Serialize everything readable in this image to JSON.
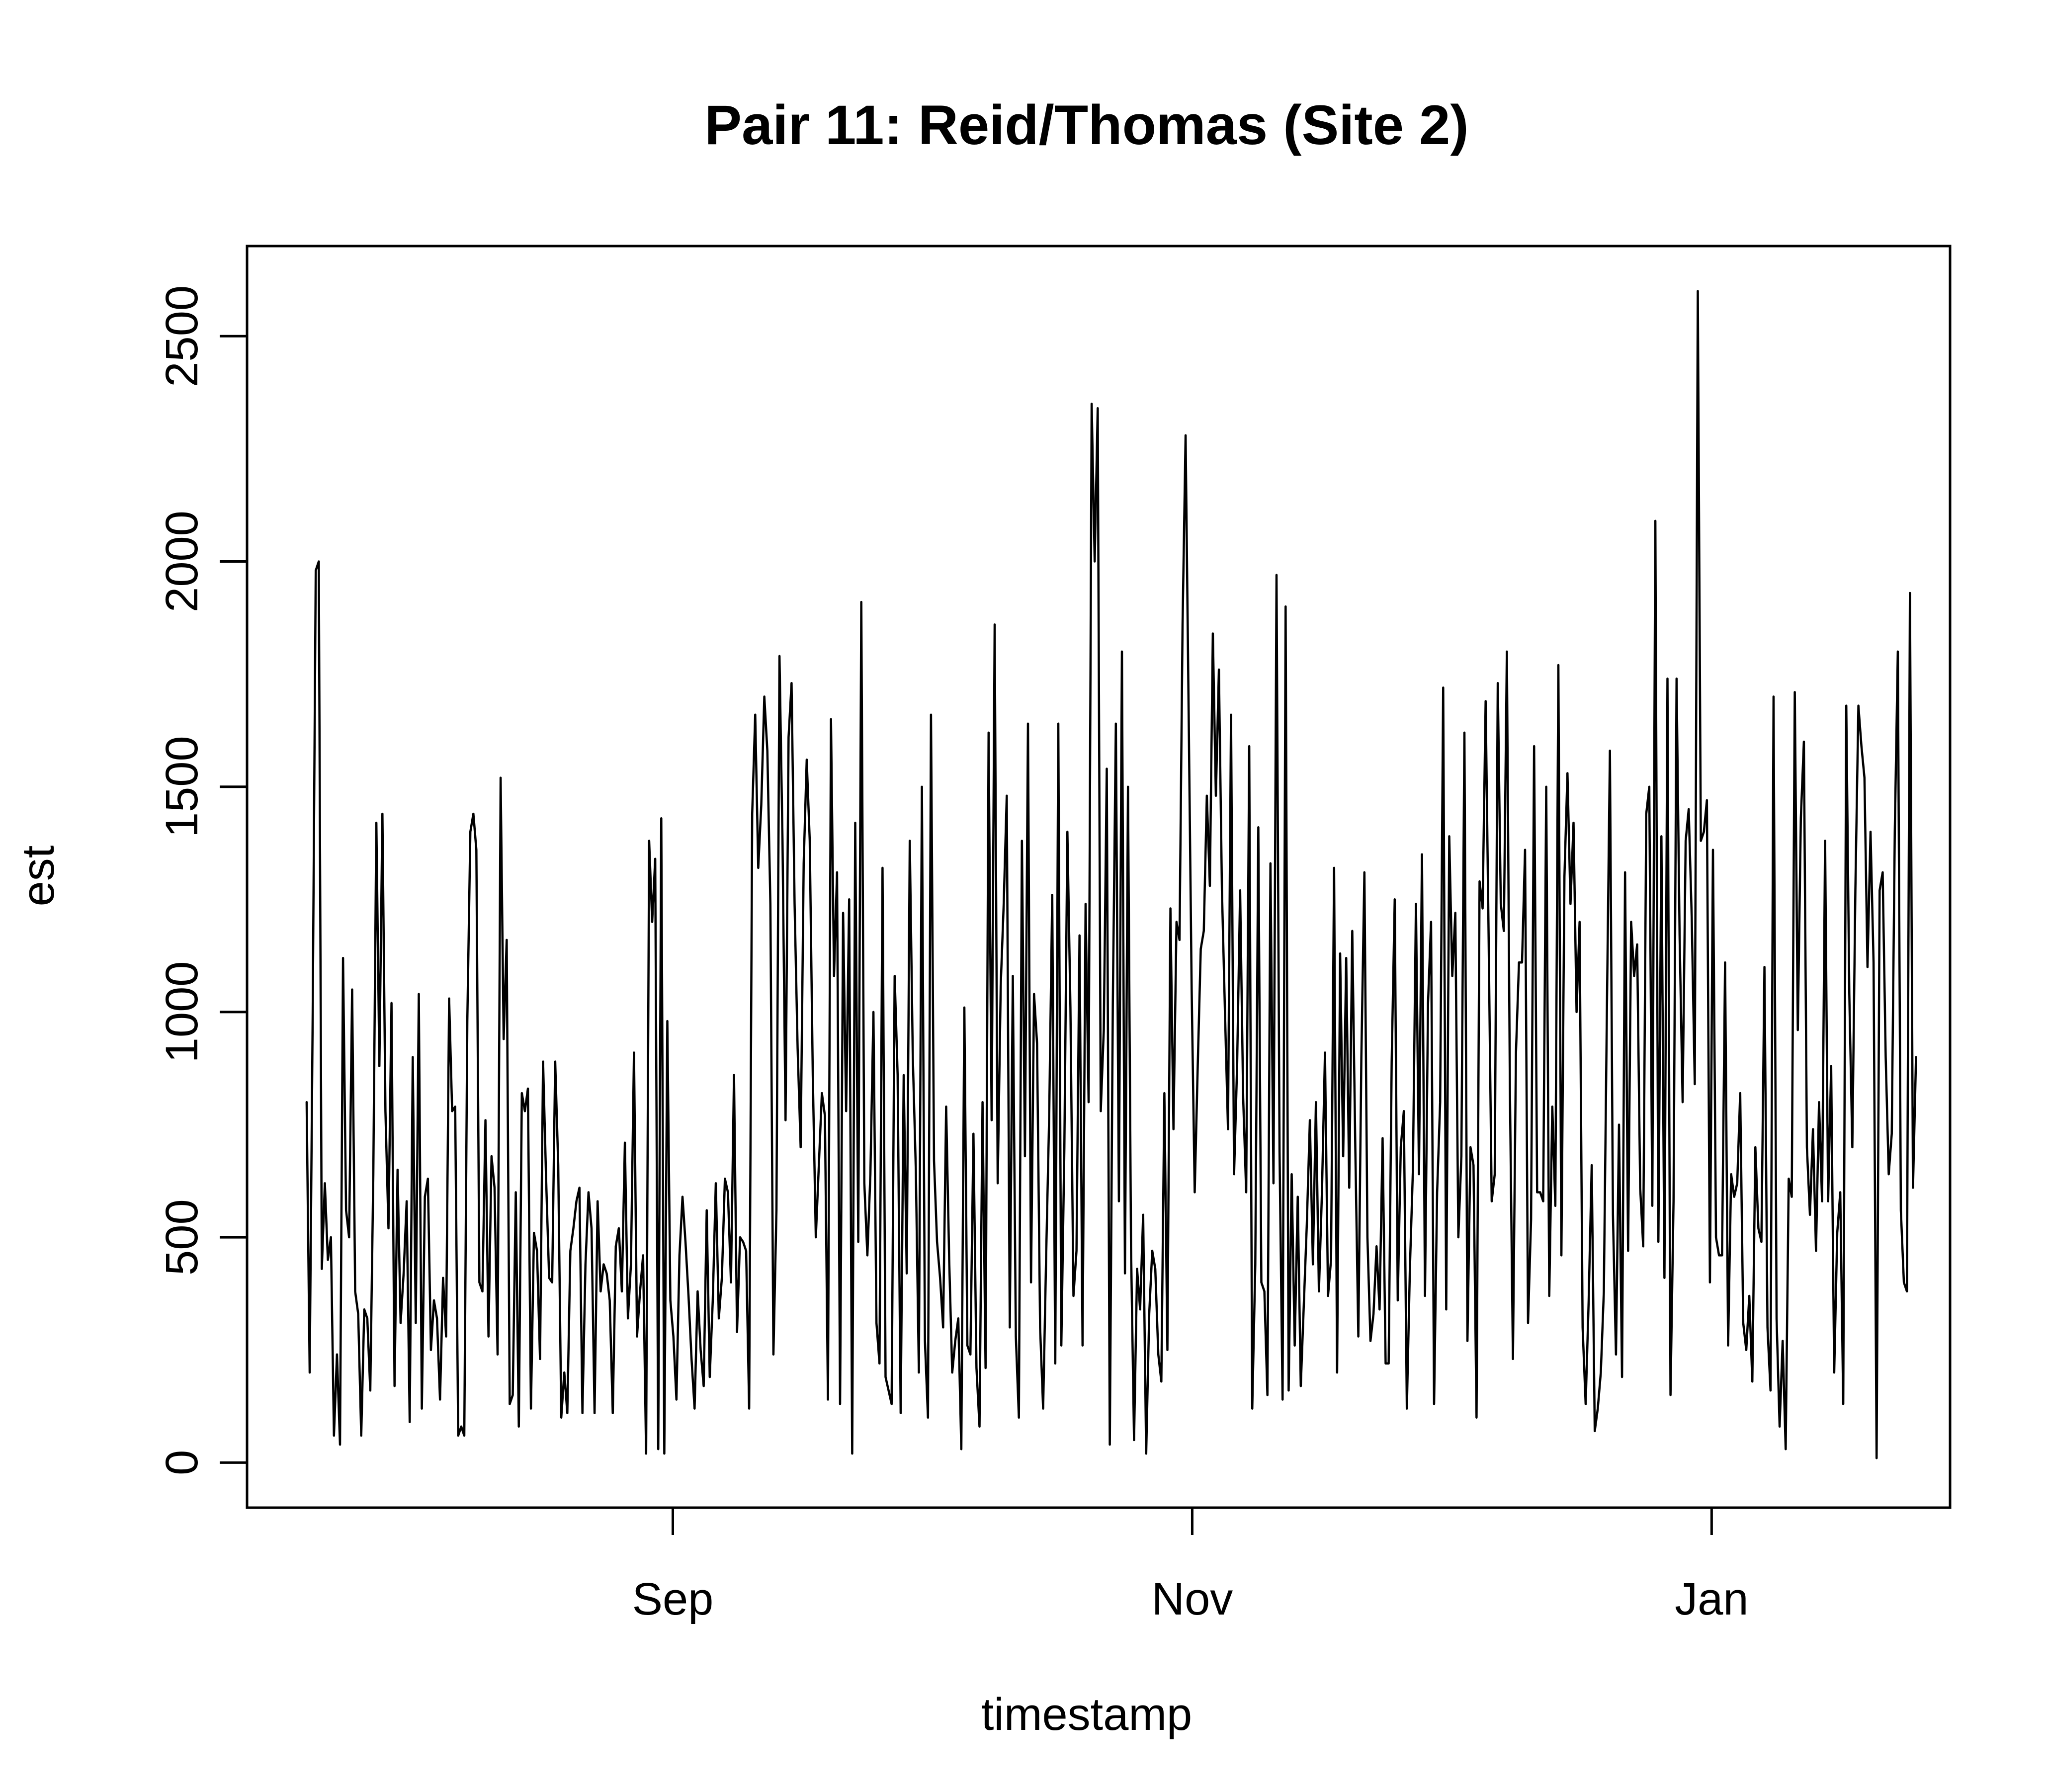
{
  "chart_data": {
    "type": "line",
    "title": "Pair 11: Reid/Thomas (Site 2)",
    "xlabel": "timestamp",
    "ylabel": "est",
    "x_range": [
      "2023-07-13",
      "2024-01-29"
    ],
    "ylim": [
      -100,
      2700
    ],
    "x_ticks": [
      {
        "date": "2023-09-01",
        "label": "Sep"
      },
      {
        "date": "2023-11-01",
        "label": "Nov"
      },
      {
        "date": "2024-01-01",
        "label": "Jan"
      }
    ],
    "y_ticks": [
      0,
      500,
      1000,
      1500,
      2000,
      2500
    ],
    "grid": false,
    "legend": "none",
    "line_color": "#000000",
    "series": [
      {
        "x_start": "2023-07-20",
        "x_end": "2024-01-25",
        "values": [
          800,
          200,
          1000,
          1980,
          2000,
          430,
          620,
          450,
          500,
          60,
          240,
          40,
          1120,
          560,
          500,
          1050,
          380,
          330,
          60,
          340,
          320,
          160,
          640,
          1420,
          880,
          1440,
          780,
          520,
          1020,
          170,
          650,
          310,
          420,
          580,
          90,
          900,
          310,
          1040,
          120,
          590,
          630,
          250,
          360,
          320,
          140,
          410,
          280,
          1030,
          780,
          790,
          60,
          80,
          60,
          980,
          1400,
          1440,
          1360,
          400,
          380,
          760,
          280,
          680,
          610,
          240,
          1520,
          940,
          1160,
          130,
          150,
          600,
          80,
          820,
          780,
          830,
          120,
          510,
          470,
          230,
          890,
          630,
          410,
          400,
          890,
          660,
          100,
          200,
          110,
          470,
          520,
          580,
          610,
          110,
          440,
          600,
          520,
          110,
          580,
          380,
          440,
          420,
          360,
          110,
          480,
          520,
          380,
          710,
          320,
          440,
          910,
          280,
          380,
          460,
          20,
          1380,
          1200,
          1340,
          30,
          1430,
          20,
          980,
          360,
          280,
          140,
          460,
          590,
          490,
          370,
          230,
          120,
          380,
          250,
          170,
          560,
          190,
          360,
          620,
          320,
          410,
          630,
          600,
          400,
          860,
          290,
          500,
          490,
          470,
          120,
          1440,
          1660,
          1320,
          1460,
          1700,
          1580,
          1240,
          240,
          560,
          1790,
          1380,
          760,
          1610,
          1730,
          1240,
          920,
          700,
          1330,
          1560,
          1380,
          860,
          500,
          660,
          820,
          770,
          140,
          1650,
          1080,
          1310,
          130,
          1220,
          780,
          1250,
          20,
          1420,
          490,
          1910,
          620,
          460,
          640,
          1000,
          310,
          220,
          1320,
          190,
          160,
          130,
          1080,
          860,
          110,
          860,
          420,
          1380,
          900,
          650,
          200,
          1500,
          270,
          100,
          1660,
          670,
          490,
          410,
          300,
          790,
          450,
          200,
          270,
          320,
          30,
          1010,
          260,
          240,
          730,
          210,
          80,
          800,
          210,
          1620,
          760,
          1860,
          620,
          1060,
          1240,
          1480,
          300,
          1080,
          280,
          100,
          1380,
          680,
          1640,
          400,
          1040,
          930,
          300,
          120,
          460,
          770,
          1260,
          220,
          1640,
          260,
          700,
          1400,
          1010,
          370,
          470,
          1170,
          260,
          1240,
          800,
          2350,
          2000,
          2340,
          780,
          960,
          1540,
          40,
          1020,
          1640,
          580,
          1800,
          420,
          1500,
          480,
          50,
          430,
          340,
          550,
          20,
          330,
          470,
          430,
          240,
          180,
          820,
          250,
          1230,
          740,
          1200,
          1160,
          1860,
          2280,
          1670,
          1050,
          600,
          880,
          1140,
          1180,
          1480,
          1280,
          1840,
          1480,
          1760,
          1270,
          1000,
          740,
          1660,
          640,
          880,
          1270,
          810,
          600,
          1590,
          120,
          440,
          1410,
          400,
          380,
          150,
          1330,
          620,
          1970,
          690,
          140,
          1900,
          160,
          640,
          260,
          590,
          170,
          350,
          530,
          760,
          440,
          800,
          380,
          600,
          910,
          370,
          450,
          1320,
          200,
          1130,
          680,
          1120,
          610,
          1180,
          700,
          280,
          900,
          1310,
          500,
          270,
          330,
          480,
          340,
          720,
          220,
          220,
          890,
          1250,
          360,
          700,
          780,
          120,
          430,
          650,
          1240,
          640,
          1350,
          370,
          1020,
          1200,
          130,
          600,
          800,
          1720,
          340,
          1390,
          1080,
          1220,
          500,
          680,
          1620,
          270,
          700,
          660,
          100,
          1290,
          1230,
          1690,
          1160,
          580,
          640,
          1730,
          1240,
          1180,
          1800,
          830,
          230,
          910,
          1110,
          1110,
          1360,
          310,
          540,
          1590,
          600,
          600,
          580,
          1500,
          370,
          790,
          570,
          1770,
          460,
          1300,
          1530,
          1240,
          1420,
          1000,
          1200,
          300,
          130,
          360,
          660,
          70,
          120,
          200,
          380,
          1000,
          1580,
          550,
          240,
          750,
          190,
          1310,
          470,
          1200,
          1080,
          1150,
          610,
          480,
          1440,
          1500,
          570,
          2090,
          490,
          1390,
          410,
          1740,
          150,
          580,
          1740,
          1170,
          800,
          1380,
          1450,
          1210,
          840,
          2600,
          1380,
          1400,
          1470,
          400,
          1360,
          500,
          460,
          460,
          1110,
          260,
          640,
          590,
          620,
          820,
          310,
          250,
          370,
          180,
          700,
          520,
          490,
          1100,
          300,
          160,
          1700,
          320,
          80,
          270,
          30,
          630,
          590,
          1710,
          960,
          1430,
          1600,
          700,
          550,
          740,
          470,
          800,
          580,
          1380,
          580,
          880,
          200,
          510,
          600,
          130,
          1680,
          1040,
          700,
          1270,
          1680,
          1590,
          1520,
          1100,
          1400,
          1110,
          10,
          1270,
          1310,
          900,
          640,
          730,
          1400,
          1800,
          560,
          400,
          380,
          1930,
          610,
          900
        ]
      }
    ]
  }
}
